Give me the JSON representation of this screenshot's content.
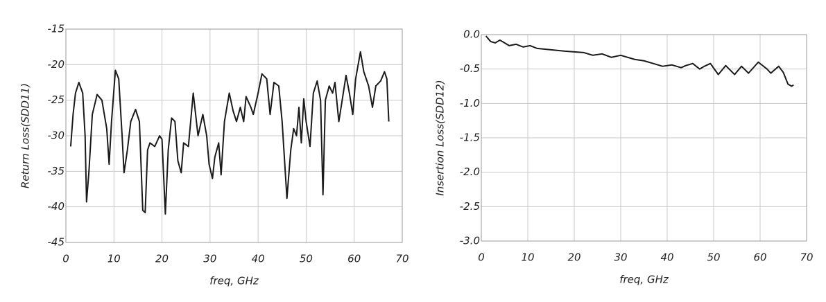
{
  "chart_data": [
    {
      "type": "line",
      "xlabel": "freq, GHz",
      "ylabel": "Return Loss(SDD11)",
      "color": "#1a1a1a",
      "grid": true,
      "xlim": [
        0,
        70
      ],
      "xticks": [
        0,
        10,
        20,
        30,
        40,
        50,
        60,
        70
      ],
      "ylim": [
        -45,
        -15
      ],
      "yticks": [
        -15,
        -20,
        -25,
        -30,
        -35,
        -40,
        -45
      ],
      "x": [
        1,
        1.5,
        2,
        2.7,
        3.5,
        4,
        4.3,
        4.8,
        5.5,
        6.5,
        7.5,
        8.5,
        9,
        9.5,
        10.3,
        11,
        11.7,
        12.1,
        12.8,
        13.5,
        14.5,
        15.3,
        16,
        16.5,
        17,
        17.5,
        18.5,
        19.5,
        20,
        20.7,
        21.3,
        22,
        22.7,
        23.3,
        24,
        24.5,
        25.5,
        26.5,
        27.5,
        28.5,
        29.3,
        29.8,
        30.5,
        31,
        31.8,
        32.3,
        33,
        34,
        34.8,
        35.5,
        36.3,
        37,
        37.5,
        38.5,
        39,
        40,
        40.8,
        41.8,
        42.5,
        43.3,
        44.3,
        45,
        46,
        46.8,
        47.4,
        48,
        48.5,
        49,
        49.5,
        50,
        50.8,
        51.5,
        52.3,
        53,
        53.5,
        54,
        54.8,
        55.5,
        56,
        56.8,
        57.5,
        58.3,
        59,
        59.7,
        60.3,
        61.3,
        62,
        63,
        63.8,
        64.5,
        65.5,
        66.3,
        66.8,
        67.2
      ],
      "values": [
        -31.5,
        -27,
        -24,
        -22.5,
        -24,
        -30,
        -39.3,
        -35,
        -27,
        -24.2,
        -25,
        -29,
        -34,
        -28,
        -20.8,
        -22,
        -30,
        -35.2,
        -32,
        -28,
        -26.3,
        -28,
        -40.5,
        -40.8,
        -32,
        -31,
        -31.5,
        -30,
        -30.5,
        -41,
        -32,
        -27.5,
        -28,
        -33.5,
        -35.2,
        -31,
        -31.5,
        -24,
        -30,
        -27,
        -30,
        -34,
        -36,
        -33,
        -31,
        -35.5,
        -28,
        -24,
        -26.5,
        -28,
        -26,
        -28,
        -24.5,
        -26,
        -27,
        -24,
        -21.3,
        -22,
        -27,
        -22.5,
        -23,
        -28,
        -38.8,
        -32,
        -29,
        -30,
        -26,
        -31,
        -24.8,
        -28,
        -31.5,
        -24,
        -22.3,
        -25,
        -38.3,
        -25,
        -23,
        -24,
        -22.5,
        -28,
        -25,
        -21.5,
        -24,
        -27,
        -22,
        -18.2,
        -21,
        -23,
        -26,
        -23,
        -22.3,
        -21,
        -22,
        -28
      ]
    },
    {
      "type": "line",
      "xlabel": "freq, GHz",
      "ylabel": "Insertion Loss(SDD12)",
      "color": "#1a1a1a",
      "grid": true,
      "xlim": [
        0,
        70
      ],
      "xticks": [
        0,
        10,
        20,
        30,
        40,
        50,
        60,
        70
      ],
      "ylim": [
        -3,
        0
      ],
      "yticks": [
        {
          "value": 0,
          "label": "0.0"
        },
        -0.5,
        {
          "value": -1,
          "label": "-1.0"
        },
        -1.5,
        {
          "value": -2,
          "label": "-2.0"
        },
        -2.5,
        {
          "value": -3,
          "label": "-3.0"
        }
      ],
      "x": [
        1,
        2,
        3,
        4,
        5,
        6,
        7.5,
        9,
        10.5,
        12,
        15,
        18,
        20,
        22,
        24,
        26,
        28,
        30,
        31,
        33,
        35,
        37,
        39,
        41,
        43,
        44,
        45.5,
        47,
        48,
        49.3,
        51,
        52.6,
        54.5,
        56,
        57.5,
        59.6,
        61.5,
        62.3,
        64,
        65,
        66,
        66.8,
        67.2
      ],
      "values": [
        -0.02,
        -0.1,
        -0.12,
        -0.08,
        -0.12,
        -0.16,
        -0.14,
        -0.18,
        -0.16,
        -0.2,
        -0.22,
        -0.24,
        -0.25,
        -0.26,
        -0.3,
        -0.28,
        -0.33,
        -0.3,
        -0.32,
        -0.36,
        -0.38,
        -0.42,
        -0.46,
        -0.44,
        -0.48,
        -0.45,
        -0.42,
        -0.5,
        -0.46,
        -0.42,
        -0.58,
        -0.45,
        -0.58,
        -0.46,
        -0.56,
        -0.4,
        -0.5,
        -0.56,
        -0.46,
        -0.55,
        -0.72,
        -0.75,
        -0.73
      ]
    }
  ]
}
